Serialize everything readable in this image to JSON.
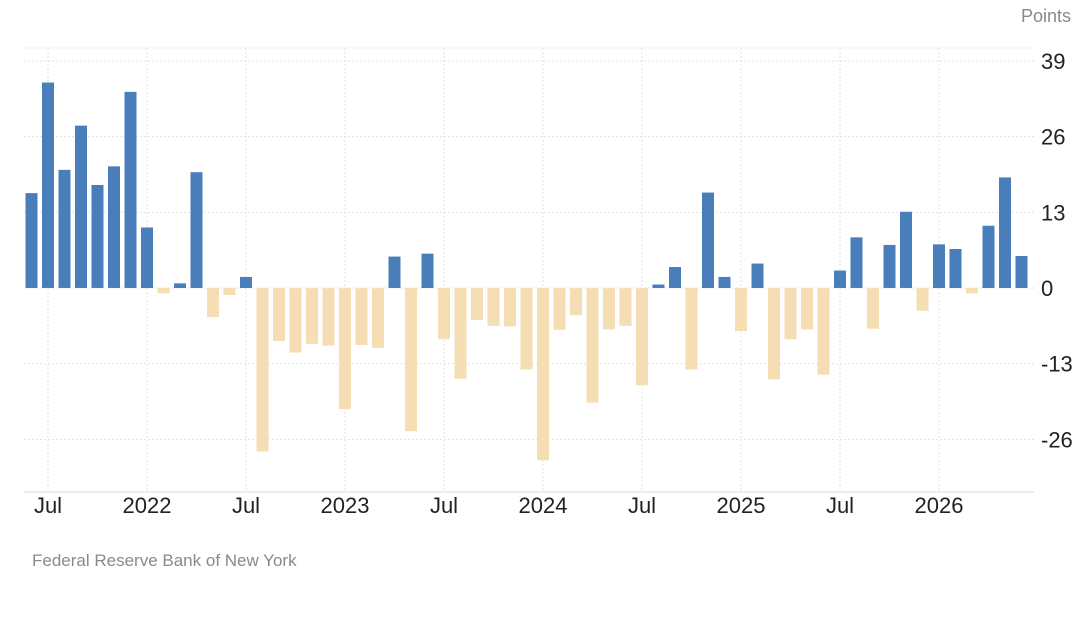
{
  "unit_label": "Points",
  "source": "Federal Reserve Bank of New York",
  "chart_data": {
    "type": "bar",
    "title": "",
    "xlabel": "",
    "ylabel": "Points",
    "y_ticks": [
      39,
      26,
      13,
      0,
      -13,
      -26
    ],
    "ylim": [
      -34,
      41
    ],
    "x_tick_labels": [
      "Jul",
      "2022",
      "Jul",
      "2023",
      "Jul",
      "2024",
      "Jul",
      "2025",
      "Jul",
      "2026"
    ],
    "positive_color": "#4a7ebb",
    "negative_color": "#f5deb3",
    "grid": true,
    "categories": [
      "2021-06",
      "2021-07",
      "2021-08",
      "2021-09",
      "2021-10",
      "2021-11",
      "2021-12",
      "2022-01",
      "2022-02",
      "2022-03",
      "2022-04",
      "2022-05",
      "2022-06",
      "2022-07",
      "2022-08",
      "2022-09",
      "2022-10",
      "2022-11",
      "2022-12",
      "2023-01",
      "2023-02",
      "2023-03",
      "2023-04",
      "2023-05",
      "2023-06",
      "2023-07",
      "2023-08",
      "2023-09",
      "2023-10",
      "2023-11",
      "2023-12",
      "2024-01",
      "2024-02",
      "2024-03",
      "2024-04",
      "2024-05",
      "2024-06",
      "2024-07",
      "2024-08",
      "2024-09",
      "2024-10",
      "2024-11",
      "2024-12",
      "2025-01",
      "2025-02",
      "2025-03",
      "2025-04",
      "2025-05",
      "2025-06",
      "2025-07",
      "2025-08",
      "2025-09",
      "2025-10",
      "2025-11",
      "2025-12",
      "2026-01",
      "2026-02",
      "2026-03",
      "2026-04",
      "2026-05",
      "2026-06"
    ],
    "values": [
      16.3,
      35.3,
      20.3,
      27.9,
      17.7,
      20.9,
      33.7,
      10.4,
      -0.9,
      0.8,
      19.9,
      -5.0,
      -1.2,
      1.9,
      -28.1,
      -9.1,
      -11.1,
      -9.6,
      -9.9,
      -20.8,
      -9.8,
      -10.3,
      5.4,
      -24.6,
      5.9,
      -8.8,
      -15.6,
      -5.5,
      -6.5,
      -6.6,
      -14.0,
      -29.6,
      -7.2,
      -4.7,
      -19.7,
      -7.1,
      -6.5,
      -16.7,
      0.6,
      3.6,
      -14.0,
      16.4,
      1.9,
      -7.4,
      4.2,
      -15.7,
      -8.8,
      -7.1,
      -14.9,
      3.0,
      8.7,
      -7.0,
      7.4,
      13.1,
      -3.9,
      7.5,
      6.7,
      -0.9,
      10.7,
      19.0,
      5.5
    ]
  }
}
